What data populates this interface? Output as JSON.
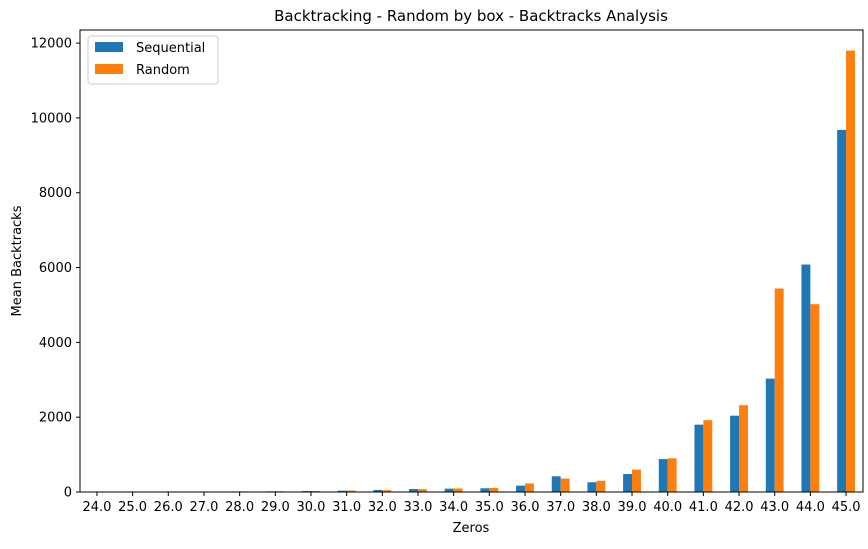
{
  "chart_data": {
    "type": "bar",
    "title": "Backtracking - Random by box - Backtracks Analysis",
    "xlabel": "Zeros",
    "ylabel": "Mean Backtracks",
    "ylim": [
      0,
      12350
    ],
    "yticks": [
      0,
      2000,
      4000,
      6000,
      8000,
      10000,
      12000
    ],
    "legend_position": "top-left",
    "grid": false,
    "categories": [
      "24.0",
      "25.0",
      "26.0",
      "27.0",
      "28.0",
      "29.0",
      "30.0",
      "31.0",
      "32.0",
      "33.0",
      "34.0",
      "35.0",
      "36.0",
      "37.0",
      "38.0",
      "39.0",
      "40.0",
      "41.0",
      "42.0",
      "43.0",
      "44.0",
      "45.0"
    ],
    "series": [
      {
        "name": "Sequential",
        "color": "#1f77b4",
        "values": [
          5,
          8,
          10,
          12,
          15,
          18,
          25,
          35,
          55,
          80,
          90,
          100,
          170,
          420,
          260,
          480,
          880,
          1800,
          2040,
          3030,
          6080,
          9680
        ]
      },
      {
        "name": "Random",
        "color": "#ff7f0e",
        "values": [
          6,
          9,
          11,
          13,
          17,
          20,
          28,
          40,
          50,
          75,
          95,
          110,
          230,
          360,
          300,
          600,
          900,
          1920,
          2320,
          5440,
          5020,
          11800
        ]
      }
    ]
  }
}
